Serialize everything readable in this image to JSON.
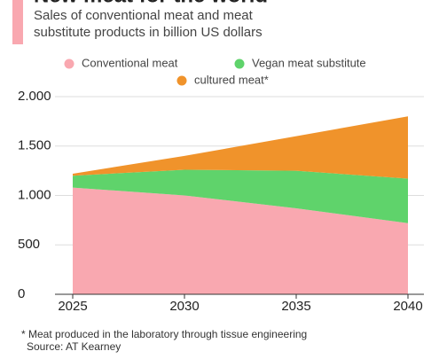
{
  "chart_data": {
    "type": "stacked-area",
    "title": "New meat for the world",
    "subtitle": [
      "Sales of conventional meat and meat",
      "substitute products in billion US dollars"
    ],
    "x": [
      2025,
      2030,
      2035,
      2040
    ],
    "xlim": [
      2025,
      2040
    ],
    "xticks": [
      2025,
      2030,
      2035,
      2040
    ],
    "ylim": [
      0,
      2000
    ],
    "yticks": [
      0,
      500,
      {
        "value": 1000,
        "label": "1.000"
      },
      {
        "value": 1500,
        "label": "1.500"
      },
      {
        "value": 2000,
        "label": "2.000"
      }
    ],
    "grid": true,
    "series": [
      {
        "name": "Conventional meat",
        "color": "#f9a8b0",
        "values": [
          1080,
          1000,
          870,
          720
        ]
      },
      {
        "name": "Vegan meat substitute",
        "color": "#5fd36b",
        "values": [
          120,
          260,
          380,
          450
        ]
      },
      {
        "name": "cultured meat*",
        "color": "#f0932b",
        "values": [
          20,
          140,
          350,
          630
        ]
      }
    ],
    "footnote": "* Meat produced in the laboratory through tissue engineering",
    "source": "Source: AT Kearney"
  }
}
